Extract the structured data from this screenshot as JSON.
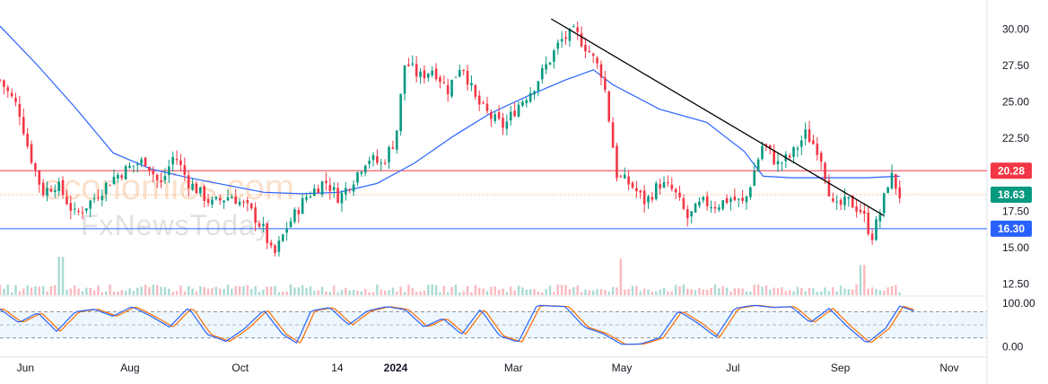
{
  "watermark": {
    "line1": "economies.com",
    "line2": "FxNewsToday"
  },
  "chart_data": [
    {
      "type": "candlestick",
      "title": "",
      "x_ticks": [
        "Jun",
        "Aug",
        "Oct",
        "14",
        "2024",
        "Mar",
        "May",
        "Jul",
        "Sep",
        "Nov"
      ],
      "y_ticks": [
        "30.00",
        "27.50",
        "25.00",
        "22.50",
        "17.50",
        "15.00",
        "12.50"
      ],
      "ylim": [
        11.8,
        31.5
      ],
      "price_tags": [
        {
          "label": "20.28",
          "value": 20.28,
          "color": "#f23645",
          "kind": "resistance"
        },
        {
          "label": "18.63",
          "value": 18.63,
          "color": "#089981",
          "kind": "last-price"
        },
        {
          "label": "16.30",
          "value": 16.3,
          "color": "#2962ff",
          "kind": "support"
        }
      ],
      "trendline": {
        "from": {
          "t": 0.585,
          "v": 30.7
        },
        "to": {
          "t": 1.0,
          "v": 17.2
        },
        "color": "#000000"
      },
      "moving_average_color": "#2962ff",
      "up_color": "#089981",
      "down_color": "#f23645",
      "price_path": [
        [
          0,
          26.5
        ],
        [
          0.02,
          24.5
        ],
        [
          0.03,
          21.8
        ],
        [
          0.045,
          18.8
        ],
        [
          0.06,
          19.4
        ],
        [
          0.08,
          17.2
        ],
        [
          0.1,
          18.4
        ],
        [
          0.12,
          19.8
        ],
        [
          0.14,
          20.6
        ],
        [
          0.155,
          21.0
        ],
        [
          0.17,
          19.2
        ],
        [
          0.185,
          21.4
        ],
        [
          0.2,
          19.5
        ],
        [
          0.225,
          18.0
        ],
        [
          0.245,
          18.6
        ],
        [
          0.265,
          17.6
        ],
        [
          0.28,
          16.2
        ],
        [
          0.29,
          14.3
        ],
        [
          0.305,
          16.5
        ],
        [
          0.325,
          18.5
        ],
        [
          0.345,
          19.6
        ],
        [
          0.36,
          18.4
        ],
        [
          0.375,
          19.7
        ],
        [
          0.39,
          21.2
        ],
        [
          0.405,
          20.7
        ],
        [
          0.42,
          22.5
        ],
        [
          0.43,
          27.8
        ],
        [
          0.445,
          26.7
        ],
        [
          0.46,
          27.3
        ],
        [
          0.475,
          25.8
        ],
        [
          0.49,
          27.7
        ],
        [
          0.505,
          25.1
        ],
        [
          0.52,
          24.0
        ],
        [
          0.535,
          23.3
        ],
        [
          0.55,
          24.8
        ],
        [
          0.565,
          25.9
        ],
        [
          0.58,
          27.5
        ],
        [
          0.595,
          29.2
        ],
        [
          0.61,
          29.8
        ],
        [
          0.625,
          28.5
        ],
        [
          0.64,
          26.8
        ],
        [
          0.655,
          19.9
        ],
        [
          0.67,
          19.3
        ],
        [
          0.685,
          18.1
        ],
        [
          0.7,
          19.4
        ],
        [
          0.715,
          18.9
        ],
        [
          0.73,
          17.0
        ],
        [
          0.745,
          18.1
        ],
        [
          0.76,
          17.9
        ],
        [
          0.775,
          18.4
        ],
        [
          0.79,
          18.0
        ],
        [
          0.81,
          22.2
        ],
        [
          0.825,
          20.7
        ],
        [
          0.84,
          21.3
        ],
        [
          0.855,
          22.8
        ],
        [
          0.87,
          21.6
        ],
        [
          0.885,
          17.6
        ],
        [
          0.9,
          18.2
        ],
        [
          0.915,
          17.5
        ],
        [
          0.925,
          15.7
        ],
        [
          0.935,
          17.5
        ],
        [
          0.945,
          20.1
        ],
        [
          0.955,
          18.6
        ]
      ],
      "ma_path": [
        [
          0,
          30.2
        ],
        [
          0.04,
          27.5
        ],
        [
          0.08,
          24.6
        ],
        [
          0.12,
          21.5
        ],
        [
          0.16,
          20.4
        ],
        [
          0.2,
          19.8
        ],
        [
          0.24,
          19.3
        ],
        [
          0.28,
          18.8
        ],
        [
          0.32,
          18.7
        ],
        [
          0.36,
          18.8
        ],
        [
          0.4,
          19.4
        ],
        [
          0.44,
          20.8
        ],
        [
          0.48,
          22.6
        ],
        [
          0.52,
          24.2
        ],
        [
          0.56,
          25.4
        ],
        [
          0.6,
          26.5
        ],
        [
          0.63,
          27.2
        ],
        [
          0.65,
          26.2
        ],
        [
          0.7,
          24.5
        ],
        [
          0.75,
          23.6
        ],
        [
          0.79,
          21.6
        ],
        [
          0.81,
          19.9
        ],
        [
          0.84,
          19.8
        ],
        [
          0.88,
          19.8
        ],
        [
          0.92,
          19.8
        ],
        [
          0.955,
          19.9
        ]
      ],
      "volume_spikes": [
        {
          "t": 0.065,
          "rel": 0.95
        },
        {
          "t": 0.66,
          "rel": 0.9
        },
        {
          "t": 0.915,
          "rel": 0.75
        }
      ]
    },
    {
      "type": "line",
      "title": "",
      "y_ticks": [
        "100.00",
        "0.00"
      ],
      "ylim": [
        -20,
        110
      ],
      "overbought": 80,
      "middle": 50,
      "oversold": 20,
      "series": [
        {
          "color": "#2962ff"
        },
        {
          "color": "#ff6d00"
        }
      ],
      "osc_path": [
        [
          0,
          86
        ],
        [
          0.02,
          55
        ],
        [
          0.04,
          78
        ],
        [
          0.06,
          35
        ],
        [
          0.08,
          80
        ],
        [
          0.1,
          86
        ],
        [
          0.12,
          70
        ],
        [
          0.14,
          92
        ],
        [
          0.16,
          70
        ],
        [
          0.18,
          45
        ],
        [
          0.2,
          90
        ],
        [
          0.22,
          28
        ],
        [
          0.24,
          12
        ],
        [
          0.26,
          42
        ],
        [
          0.28,
          84
        ],
        [
          0.3,
          28
        ],
        [
          0.315,
          8
        ],
        [
          0.33,
          82
        ],
        [
          0.35,
          90
        ],
        [
          0.37,
          50
        ],
        [
          0.39,
          82
        ],
        [
          0.41,
          92
        ],
        [
          0.43,
          85
        ],
        [
          0.45,
          45
        ],
        [
          0.47,
          65
        ],
        [
          0.49,
          28
        ],
        [
          0.51,
          86
        ],
        [
          0.53,
          25
        ],
        [
          0.55,
          10
        ],
        [
          0.57,
          95
        ],
        [
          0.6,
          92
        ],
        [
          0.62,
          45
        ],
        [
          0.64,
          30
        ],
        [
          0.66,
          5
        ],
        [
          0.68,
          6
        ],
        [
          0.7,
          20
        ],
        [
          0.72,
          82
        ],
        [
          0.74,
          55
        ],
        [
          0.76,
          22
        ],
        [
          0.78,
          88
        ],
        [
          0.8,
          95
        ],
        [
          0.82,
          90
        ],
        [
          0.84,
          92
        ],
        [
          0.86,
          55
        ],
        [
          0.88,
          88
        ],
        [
          0.9,
          45
        ],
        [
          0.92,
          8
        ],
        [
          0.94,
          42
        ],
        [
          0.955,
          93
        ],
        [
          0.97,
          82
        ]
      ]
    }
  ]
}
